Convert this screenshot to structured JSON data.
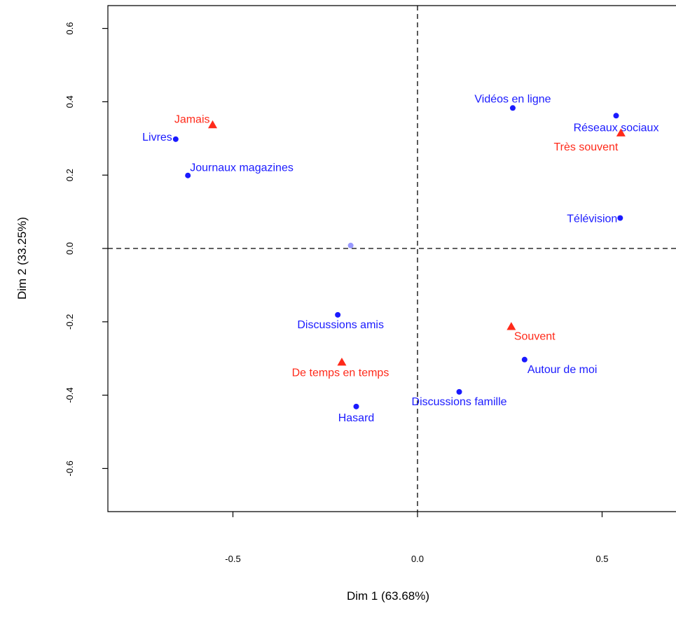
{
  "chart_data": {
    "type": "scatter",
    "xlabel": "Dim 1 (63.68%)",
    "ylabel": "Dim 2 (33.25%)",
    "xlim": [
      -0.84,
      0.7
    ],
    "ylim": [
      -0.71,
      0.67
    ],
    "xticks": [
      -0.5,
      0.0,
      0.5
    ],
    "yticks": [
      -0.6,
      -0.4,
      -0.2,
      0.0,
      0.2,
      0.4,
      0.6
    ],
    "xtick_labels": [
      "-0.5",
      "0.0",
      "0.5"
    ],
    "ytick_labels": [
      "-0.6",
      "-0.4",
      "-0.2",
      "0.0",
      "0.2",
      "0.4",
      "0.6"
    ],
    "reference_lines": {
      "x": 0.0,
      "y": 0.0,
      "style": "dashed"
    },
    "colors": {
      "blue_series": "#1a1aff",
      "red_series": "#ff2a1a",
      "light_point": "#9999ff"
    },
    "series": [
      {
        "marker": "circle",
        "color": "#1a1aff",
        "points": [
          {
            "label": "Livres",
            "x": -0.655,
            "y": 0.298
          },
          {
            "label": "Journaux magazines",
            "x": -0.622,
            "y": 0.199
          },
          {
            "label": "Vidéos en ligne",
            "x": 0.258,
            "y": 0.383
          },
          {
            "label": "Réseaux sociaux",
            "x": 0.538,
            "y": 0.362
          },
          {
            "label": "Télévision",
            "x": 0.549,
            "y": 0.083
          },
          {
            "label": "Discussions amis",
            "x": -0.216,
            "y": -0.181
          },
          {
            "label": "Autour de moi",
            "x": 0.29,
            "y": -0.303
          },
          {
            "label": "Discussions famille",
            "x": 0.113,
            "y": -0.391
          },
          {
            "label": "Hasard",
            "x": -0.166,
            "y": -0.431
          }
        ]
      },
      {
        "marker": "triangle",
        "color": "#ff2a1a",
        "points": [
          {
            "label": "Jamais",
            "x": -0.555,
            "y": 0.337
          },
          {
            "label": "Très souvent",
            "x": 0.551,
            "y": 0.315
          },
          {
            "label": "Souvent",
            "x": 0.254,
            "y": -0.213
          },
          {
            "label": "De temps en temps",
            "x": -0.205,
            "y": -0.31
          }
        ]
      },
      {
        "marker": "circle",
        "color": "#9999ff",
        "points": [
          {
            "label": "",
            "x": -0.181,
            "y": 0.008
          }
        ]
      }
    ]
  }
}
